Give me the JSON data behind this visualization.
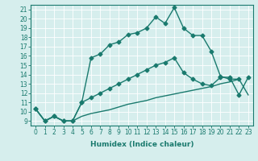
{
  "xlabel": "Humidex (Indice chaleur)",
  "background_color": "#d6eeed",
  "line_color": "#1a7a6e",
  "grid_color": "#b8d8d4",
  "xlim": [
    -0.5,
    23.5
  ],
  "ylim": [
    8.5,
    21.5
  ],
  "yticks": [
    9,
    10,
    11,
    12,
    13,
    14,
    15,
    16,
    17,
    18,
    19,
    20,
    21
  ],
  "xticks": [
    0,
    1,
    2,
    3,
    4,
    5,
    6,
    7,
    8,
    9,
    10,
    11,
    12,
    13,
    14,
    15,
    16,
    17,
    18,
    19,
    20,
    21,
    22,
    23
  ],
  "line1_x": [
    0,
    1,
    2,
    3,
    4,
    5,
    6,
    7,
    8,
    9,
    10,
    11,
    12,
    13,
    14,
    15,
    16,
    17,
    18,
    19,
    20,
    21,
    22
  ],
  "line1_y": [
    10.3,
    9.0,
    9.5,
    9.0,
    9.0,
    11.0,
    15.8,
    16.2,
    17.2,
    17.5,
    18.3,
    18.5,
    19.0,
    20.2,
    19.5,
    21.2,
    19.0,
    18.2,
    18.2,
    16.5,
    13.8,
    13.5,
    13.5
  ],
  "line2_x": [
    0,
    1,
    2,
    3,
    4,
    5,
    6,
    7,
    8,
    9,
    10,
    11,
    12,
    13,
    14,
    15,
    16,
    17,
    18,
    19,
    20,
    21,
    22,
    23
  ],
  "line2_y": [
    10.3,
    9.0,
    9.5,
    9.0,
    9.0,
    11.0,
    11.5,
    12.0,
    12.5,
    13.0,
    13.5,
    14.0,
    14.5,
    15.0,
    15.3,
    15.8,
    14.2,
    13.5,
    13.0,
    12.8,
    13.7,
    13.7,
    11.8,
    13.7
  ],
  "line3_x": [
    0,
    1,
    2,
    3,
    4,
    5,
    6,
    7,
    8,
    9,
    10,
    11,
    12,
    13,
    14,
    15,
    16,
    17,
    18,
    19,
    20,
    21,
    22,
    23
  ],
  "line3_y": [
    10.3,
    9.0,
    9.5,
    9.0,
    9.0,
    9.5,
    9.8,
    10.0,
    10.2,
    10.5,
    10.8,
    11.0,
    11.2,
    11.5,
    11.7,
    11.9,
    12.1,
    12.3,
    12.5,
    12.7,
    13.0,
    13.2,
    13.5,
    11.8
  ],
  "markersize": 2.5,
  "linewidth": 1.0,
  "tick_fontsize": 5.5,
  "axis_fontsize": 6.5
}
